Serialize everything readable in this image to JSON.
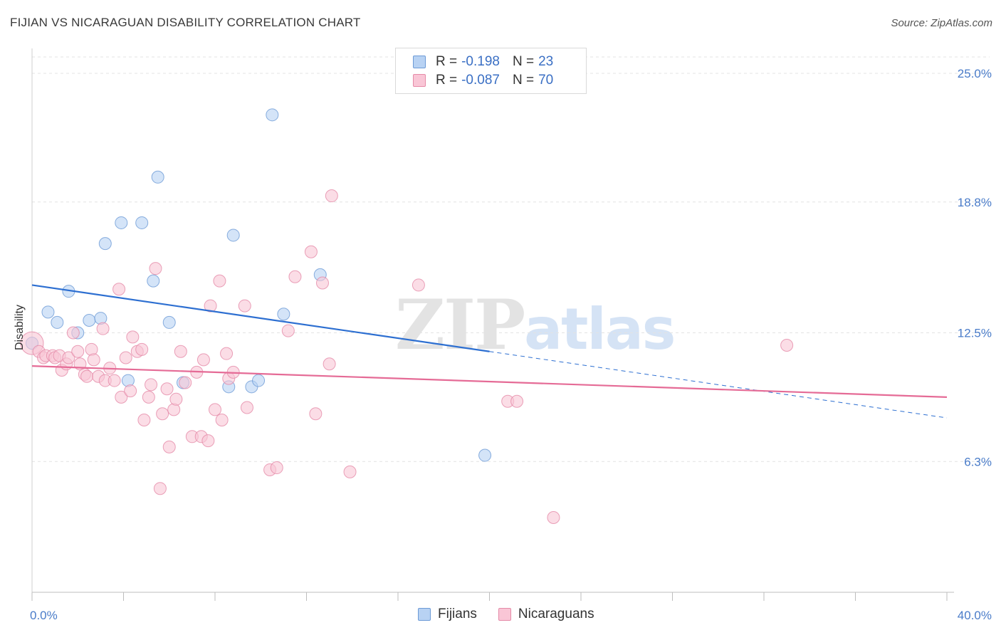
{
  "title": "FIJIAN VS NICARAGUAN DISABILITY CORRELATION CHART",
  "source": "Source: ZipAtlas.com",
  "watermark": {
    "zip": "ZIP",
    "atlas": "atlas"
  },
  "colors": {
    "blue_fill": "#b8d2f3",
    "blue_stroke": "#6c9ad6",
    "blue_line": "#2d6fd1",
    "pink_fill": "#f9c6d6",
    "pink_stroke": "#e58aa7",
    "pink_line": "#e56b96",
    "grid": "#e3e3e3",
    "tick_text": "#4a7cc9"
  },
  "legend": {
    "rows": [
      {
        "r_label": "R =",
        "r_value": "-0.198",
        "n_label": "N =",
        "n_value": "23",
        "series": "fijians"
      },
      {
        "r_label": "R =",
        "r_value": "-0.087",
        "n_label": "N =",
        "n_value": "70",
        "series": "nicaraguans"
      }
    ]
  },
  "bottom_legend": {
    "fijians": "Fijians",
    "nicaraguans": "Nicaraguans"
  },
  "chart_data": {
    "type": "scatter",
    "title": "FIJIAN VS NICARAGUAN DISABILITY CORRELATION CHART",
    "xlabel": "",
    "ylabel": "Disability",
    "xlim": [
      0,
      40
    ],
    "ylim": [
      0,
      26.2
    ],
    "x_tick_labels": [
      {
        "value": 0,
        "label": "0.0%"
      },
      {
        "value": 40,
        "label": "40.0%"
      }
    ],
    "x_ticks": [
      0,
      4,
      8,
      12,
      16,
      20,
      24,
      28,
      32,
      36,
      40
    ],
    "y_ticks": [
      {
        "value": 6.3,
        "label": "6.3%"
      },
      {
        "value": 12.5,
        "label": "12.5%"
      },
      {
        "value": 18.8,
        "label": "18.8%"
      },
      {
        "value": 25.0,
        "label": "25.0%"
      }
    ],
    "grid": true,
    "series": [
      {
        "name": "Fijians",
        "color": "#b8d2f3",
        "points": [
          [
            0.0,
            12.0
          ],
          [
            0.7,
            13.5
          ],
          [
            1.1,
            13.0
          ],
          [
            1.6,
            14.5
          ],
          [
            2.0,
            12.5
          ],
          [
            2.5,
            13.1
          ],
          [
            3.0,
            13.2
          ],
          [
            3.2,
            16.8
          ],
          [
            3.9,
            17.8
          ],
          [
            4.2,
            10.2
          ],
          [
            4.8,
            17.8
          ],
          [
            5.3,
            15.0
          ],
          [
            5.5,
            20.0
          ],
          [
            6.0,
            13.0
          ],
          [
            6.6,
            10.1
          ],
          [
            8.6,
            9.9
          ],
          [
            8.8,
            17.2
          ],
          [
            9.6,
            9.9
          ],
          [
            9.9,
            10.2
          ],
          [
            10.5,
            23.0
          ],
          [
            11.0,
            13.4
          ],
          [
            12.6,
            15.3
          ],
          [
            19.8,
            6.6
          ]
        ],
        "trend": {
          "x0": 0,
          "y0": 14.8,
          "x1": 20.0,
          "y1": 11.6,
          "x_dash_end": 40,
          "y_dash_end": 8.4
        }
      },
      {
        "name": "Nicaraguans",
        "color": "#f9c6d6",
        "points": [
          [
            0.0,
            12.0
          ],
          [
            0.3,
            11.6
          ],
          [
            0.5,
            11.3
          ],
          [
            0.6,
            11.4
          ],
          [
            0.9,
            11.4
          ],
          [
            1.0,
            11.3
          ],
          [
            1.2,
            11.4
          ],
          [
            1.3,
            10.7
          ],
          [
            1.5,
            11.0
          ],
          [
            1.6,
            11.3
          ],
          [
            1.8,
            12.5
          ],
          [
            2.0,
            11.6
          ],
          [
            2.1,
            11.0
          ],
          [
            2.3,
            10.5
          ],
          [
            2.4,
            10.4
          ],
          [
            2.6,
            11.7
          ],
          [
            2.7,
            11.2
          ],
          [
            2.9,
            10.4
          ],
          [
            3.1,
            12.7
          ],
          [
            3.2,
            10.2
          ],
          [
            3.4,
            10.8
          ],
          [
            3.6,
            10.2
          ],
          [
            3.8,
            14.6
          ],
          [
            3.9,
            9.4
          ],
          [
            4.1,
            11.3
          ],
          [
            4.3,
            9.7
          ],
          [
            4.4,
            12.3
          ],
          [
            4.6,
            11.6
          ],
          [
            4.8,
            11.7
          ],
          [
            4.9,
            8.3
          ],
          [
            5.1,
            9.4
          ],
          [
            5.2,
            10.0
          ],
          [
            5.4,
            15.6
          ],
          [
            5.6,
            5.0
          ],
          [
            5.7,
            8.6
          ],
          [
            5.9,
            9.8
          ],
          [
            6.0,
            7.0
          ],
          [
            6.2,
            8.8
          ],
          [
            6.3,
            9.3
          ],
          [
            6.5,
            11.6
          ],
          [
            6.7,
            10.1
          ],
          [
            7.0,
            7.5
          ],
          [
            7.2,
            10.6
          ],
          [
            7.4,
            7.5
          ],
          [
            7.5,
            11.2
          ],
          [
            7.7,
            7.3
          ],
          [
            7.8,
            13.8
          ],
          [
            8.0,
            8.8
          ],
          [
            8.2,
            15.0
          ],
          [
            8.3,
            8.3
          ],
          [
            8.5,
            11.5
          ],
          [
            8.6,
            10.3
          ],
          [
            8.8,
            10.6
          ],
          [
            9.3,
            13.8
          ],
          [
            9.4,
            8.9
          ],
          [
            10.4,
            5.9
          ],
          [
            10.7,
            6.0
          ],
          [
            11.2,
            12.6
          ],
          [
            11.5,
            15.2
          ],
          [
            12.4,
            8.6
          ],
          [
            12.2,
            16.4
          ],
          [
            12.7,
            14.9
          ],
          [
            13.0,
            11.0
          ],
          [
            13.1,
            19.1
          ],
          [
            13.9,
            5.8
          ],
          [
            16.9,
            14.8
          ],
          [
            20.8,
            9.2
          ],
          [
            21.2,
            9.2
          ],
          [
            22.8,
            3.6
          ],
          [
            33.0,
            11.9
          ]
        ],
        "trend": {
          "x0": 0,
          "y0": 10.9,
          "x1": 40,
          "y1": 9.4
        }
      }
    ]
  }
}
